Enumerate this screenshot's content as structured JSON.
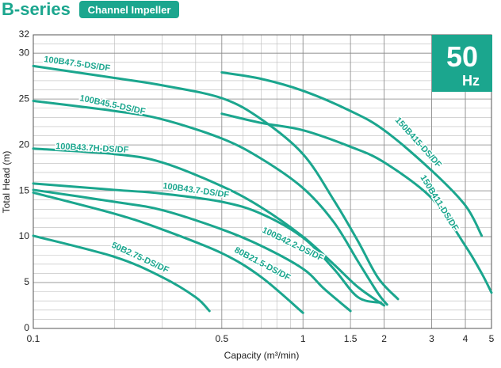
{
  "header": {
    "title": "B-series",
    "badge": "Channel Impeller",
    "frequency_value": "50",
    "frequency_unit": "Hz"
  },
  "chart_data": {
    "type": "line",
    "xscale": "log",
    "grid": true,
    "color": "#1ba68e",
    "xlabel": "Capacity (m³/min)",
    "ylabel": "Total Head (m)",
    "xlim": [
      0.1,
      5
    ],
    "xticks": [
      0.1,
      0.5,
      1,
      1.5,
      2,
      3,
      4,
      5
    ],
    "ylim": [
      0,
      32
    ],
    "yticks": [
      0,
      5,
      10,
      15,
      20,
      25,
      30,
      32
    ],
    "series": [
      {
        "name": "100B47.5-DS/DF",
        "x": [
          0.1,
          0.2,
          0.3,
          0.5,
          0.7,
          1,
          1.3,
          1.6,
          1.9,
          2.25
        ],
        "values": [
          28.6,
          27.3,
          26.5,
          25.1,
          22.8,
          19,
          14,
          9.5,
          5.5,
          3.2
        ]
      },
      {
        "name": "100B45.5-DS/DF",
        "x": [
          0.1,
          0.2,
          0.3,
          0.5,
          0.7,
          1,
          1.3,
          1.6,
          1.9,
          2.05
        ],
        "values": [
          24.8,
          23.7,
          22.8,
          20.7,
          18.5,
          15.3,
          11.6,
          7.3,
          3.8,
          2.6
        ]
      },
      {
        "name": "100B43.7H-DS/DF",
        "x": [
          0.1,
          0.2,
          0.3,
          0.5,
          0.7,
          1,
          1.3,
          1.6,
          2
        ],
        "values": [
          19.6,
          19,
          18.1,
          15.5,
          13.2,
          10,
          7,
          4.5,
          2.5
        ]
      },
      {
        "name": "100B43.7-DS/DF",
        "x": [
          0.1,
          0.2,
          0.3,
          0.5,
          0.7,
          1,
          1.3,
          1.6,
          1.95
        ],
        "values": [
          15.8,
          15.1,
          14.7,
          13.8,
          12.5,
          9.9,
          6.5,
          3.4,
          2.8
        ]
      },
      {
        "name": "100B42.2-DS/DF",
        "x": [
          0.1,
          0.2,
          0.3,
          0.5,
          0.7,
          1,
          1.2,
          1.5
        ],
        "values": [
          15.1,
          13.8,
          12.9,
          10.8,
          9,
          6.5,
          4.3,
          1.9
        ]
      },
      {
        "name": "80B21.5-DS/DF",
        "x": [
          0.1,
          0.2,
          0.3,
          0.5,
          0.7,
          1
        ],
        "values": [
          14.8,
          12.5,
          10.8,
          8.2,
          5.6,
          1.7
        ]
      },
      {
        "name": "50B2.75-DS/DF",
        "x": [
          0.1,
          0.2,
          0.3,
          0.4,
          0.45
        ],
        "values": [
          10.1,
          7.8,
          5.6,
          3.4,
          1.9
        ]
      },
      {
        "name": "150B415-DS/DF",
        "x": [
          0.5,
          0.7,
          1,
          1.5,
          2,
          3,
          4,
          4.6
        ],
        "values": [
          27.9,
          27.2,
          25.9,
          23.7,
          21.6,
          17.2,
          13.4,
          10.1
        ]
      },
      {
        "name": "150B411-DS/DF",
        "x": [
          0.5,
          0.7,
          1,
          1.5,
          2,
          3,
          4,
          4.6,
          5
        ],
        "values": [
          23.4,
          22.4,
          21.6,
          19.8,
          18.1,
          14.2,
          9,
          6,
          3.9
        ]
      }
    ]
  }
}
